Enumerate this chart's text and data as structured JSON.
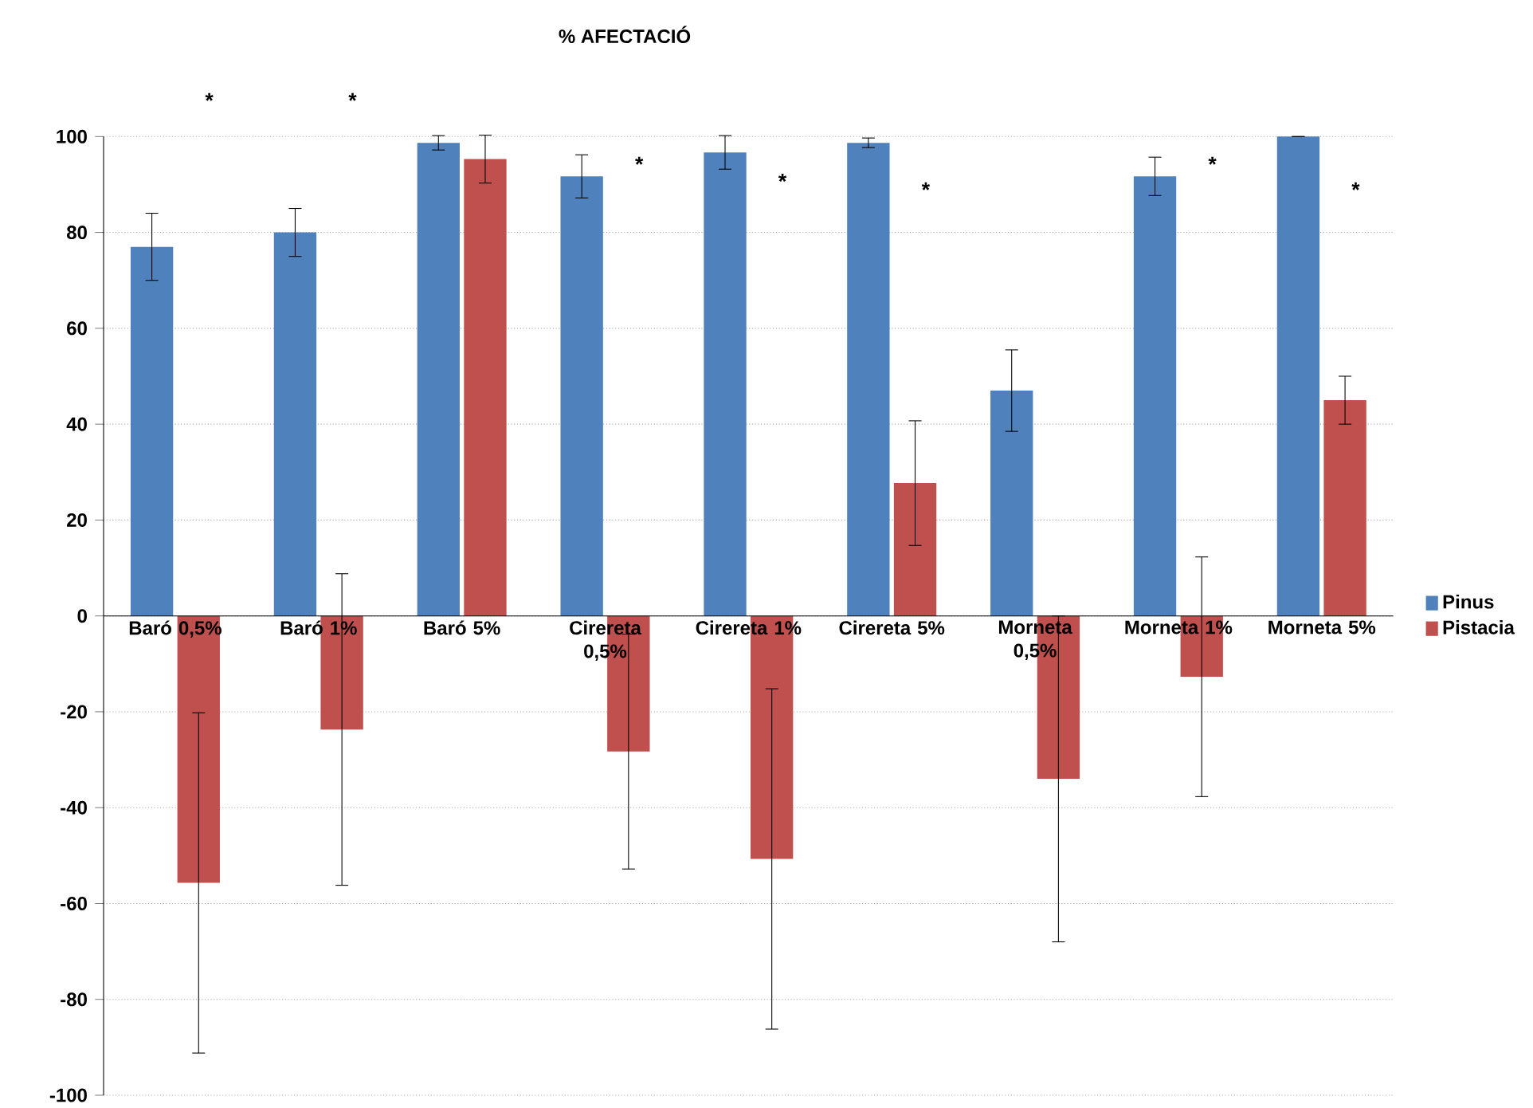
{
  "chart_data": {
    "type": "bar",
    "title": "% AFECTACIÓ",
    "categories": [
      "Baró 0,5%",
      "Baró 1%",
      "Baró 5%",
      "Cirereta 0,5%",
      "Cirereta 1%",
      "Cirereta 5%",
      "Morneta 0,5%",
      "Morneta 1%",
      "Morneta 5%"
    ],
    "series": [
      {
        "name": "Pinus",
        "color": "#4f81bd",
        "values": [
          77,
          80,
          98.7,
          91.7,
          96.7,
          98.7,
          47,
          91.7,
          100
        ],
        "errors": [
          7,
          5,
          1.5,
          4.5,
          3.5,
          1,
          8.5,
          4,
          0
        ]
      },
      {
        "name": "Pistacia",
        "color": "#c0504d",
        "values": [
          -55.7,
          -23.7,
          95.3,
          -28.3,
          -50.7,
          27.7,
          -34,
          -12.7,
          45
        ],
        "errors": [
          35.5,
          32.5,
          5,
          24.5,
          35.5,
          13,
          34,
          25,
          5
        ]
      }
    ],
    "ylim": [
      -100,
      100
    ],
    "yticks": [
      -100,
      -80,
      -60,
      -40,
      -20,
      0,
      20,
      40,
      60,
      80,
      100
    ],
    "grid": "y",
    "legend": "right",
    "annotations": [
      "*",
      "*",
      "*",
      "*",
      "*",
      "*",
      "*"
    ]
  }
}
